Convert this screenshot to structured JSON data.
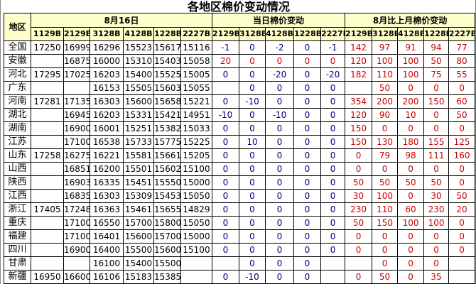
{
  "title": "各地区棉价变动情况",
  "header": {
    "region": "地区",
    "group_price": "8月16日",
    "group_daily": "当日棉价变动",
    "group_monthly": "8月比上月棉价变动",
    "price_cols": [
      "1129B",
      "2129B",
      "3128B",
      "4128B",
      "1228B",
      "2227B"
    ],
    "daily_cols": [
      "2129B",
      "3128B",
      "4128B",
      "1228B",
      "2227B"
    ],
    "monthly_cols": [
      "2129B",
      "3128B",
      "4128B",
      "1228B",
      "2227B"
    ]
  },
  "colors": {
    "header_bg": "#ffffcc",
    "daily_text": "#000080",
    "monthly_text": "#cc0000"
  },
  "rows": [
    {
      "region": "全国",
      "price": [
        "17250",
        "16999",
        "16296",
        "15523",
        "15617",
        "15116"
      ],
      "daily": [
        "-1",
        "0",
        "-2",
        "0",
        "-1"
      ],
      "daily_color": "blue",
      "monthly": [
        "142",
        "97",
        "91",
        "94",
        "77"
      ]
    },
    {
      "region": "安徽",
      "price": [
        "",
        "16875",
        "16000",
        "15310",
        "15403",
        "15058"
      ],
      "daily": [
        "20",
        "0",
        "0",
        "0",
        "0"
      ],
      "daily_color": "red",
      "monthly": [
        "120",
        "100",
        "100",
        "50",
        "80"
      ]
    },
    {
      "region": "河北",
      "price": [
        "17295",
        "17025",
        "16203",
        "15400",
        "15525",
        "15005"
      ],
      "daily": [
        "0",
        "0",
        "-20",
        "0",
        "-20"
      ],
      "daily_color": "blue",
      "monthly": [
        "182",
        "110",
        "100",
        "75",
        "55"
      ]
    },
    {
      "region": "广东",
      "price": [
        "",
        "",
        "16153",
        "15505",
        "15603",
        "15055"
      ],
      "daily": [
        "",
        "0",
        "0",
        "0",
        "0"
      ],
      "daily_color": "blue",
      "monthly": [
        "",
        "50",
        "0",
        "0",
        "0"
      ]
    },
    {
      "region": "河南",
      "price": [
        "17281",
        "17135",
        "16303",
        "15600",
        "15658",
        "15221"
      ],
      "daily": [
        "0",
        "-10",
        "0",
        "0",
        "0"
      ],
      "daily_color": "blue",
      "monthly": [
        "354",
        "200",
        "200",
        "150",
        "60"
      ]
    },
    {
      "region": "湖北",
      "price": [
        "",
        "16945",
        "16203",
        "15331",
        "15421",
        "14951"
      ],
      "daily": [
        "-10",
        "0",
        "-10",
        "0",
        "0"
      ],
      "daily_color": "blue",
      "monthly": [
        "120",
        "90",
        "10",
        "0",
        "50"
      ]
    },
    {
      "region": "湖南",
      "price": [
        "",
        "16900",
        "16001",
        "15251",
        "15382",
        "15033"
      ],
      "daily": [
        "0",
        "0",
        "0",
        "0",
        "0"
      ],
      "daily_color": "blue",
      "monthly": [
        "150",
        "0",
        "0",
        "0",
        "0"
      ]
    },
    {
      "region": "江苏",
      "price": [
        "",
        "17100",
        "16538",
        "15733",
        "15775",
        "15225"
      ],
      "daily": [
        "0",
        "10",
        "0",
        "0",
        "0"
      ],
      "daily_color": "blue",
      "monthly": [
        "150",
        "130",
        "180",
        "155",
        "125"
      ]
    },
    {
      "region": "山东",
      "price": [
        "17258",
        "16275",
        "16221",
        "15581",
        "15661",
        "15205"
      ],
      "daily": [
        "0",
        "0",
        "0",
        "0",
        "0"
      ],
      "daily_color": "blue",
      "monthly": [
        "0",
        "79",
        "98",
        "111",
        "160"
      ]
    },
    {
      "region": "山西",
      "price": [
        "",
        "16851",
        "16200",
        "15501",
        "15602",
        "15100"
      ],
      "daily": [
        "0",
        "0",
        "0",
        "0",
        "0"
      ],
      "daily_color": "blue",
      "monthly": [
        "0",
        "0",
        "0",
        "0",
        "0"
      ]
    },
    {
      "region": "陕西",
      "price": [
        "",
        "16903",
        "16335",
        "15451",
        "15550",
        "15000"
      ],
      "daily": [
        "0",
        "0",
        "0",
        "0",
        "0"
      ],
      "daily_color": "blue",
      "monthly": [
        "50",
        "50",
        "50",
        "50",
        "0"
      ]
    },
    {
      "region": "江西",
      "price": [
        "",
        "16835",
        "16303",
        "15309",
        "15453",
        "15050"
      ],
      "daily": [
        "0",
        "0",
        "0",
        "0",
        "0"
      ],
      "daily_color": "blue",
      "monthly": [
        "30",
        "100",
        "0",
        "30",
        "50"
      ]
    },
    {
      "region": "浙江",
      "price": [
        "17405",
        "17248",
        "16363",
        "15461",
        "15655",
        "14829"
      ],
      "daily": [
        "0",
        "0",
        "0",
        "0",
        "0"
      ],
      "daily_color": "blue",
      "monthly": [
        "230",
        "110",
        "60",
        "230",
        "20"
      ]
    },
    {
      "region": "重庆",
      "price": [
        "",
        "17100",
        "16550",
        "15700",
        "15800",
        "15050"
      ],
      "daily": [
        "0",
        "0",
        "0",
        "0",
        "0"
      ],
      "daily_color": "blue",
      "monthly": [
        "50",
        "150",
        "100",
        "100",
        "0"
      ]
    },
    {
      "region": "福建",
      "price": [
        "",
        "17100",
        "16401",
        "15600",
        "15700",
        "15000"
      ],
      "daily": [
        "0",
        "0",
        "0",
        "0",
        "0"
      ],
      "daily_color": "blue",
      "monthly": [
        "0",
        "0",
        "0",
        "0",
        "0"
      ]
    },
    {
      "region": "四川",
      "price": [
        "",
        "16900",
        "16400",
        "15500",
        "15600",
        "15100"
      ],
      "daily": [
        "0",
        "0",
        "0",
        "0",
        "0"
      ],
      "daily_color": "blue",
      "monthly": [
        "0",
        "0",
        "0",
        "0",
        "0"
      ]
    },
    {
      "region": "甘肃",
      "price": [
        "",
        "",
        "16100",
        "15400",
        "15500",
        ""
      ],
      "daily": [
        "",
        "0",
        "0",
        "0",
        ""
      ],
      "daily_color": "blue",
      "monthly": [
        "",
        "0",
        "0",
        "0",
        ""
      ]
    },
    {
      "region": "新疆",
      "price": [
        "16950",
        "16600",
        "16106",
        "15183",
        "15385",
        ""
      ],
      "daily": [
        "0",
        "-10",
        "0",
        "0",
        ""
      ],
      "daily_color": "blue",
      "monthly": [
        "0",
        "50",
        "0",
        "35",
        ""
      ]
    }
  ]
}
